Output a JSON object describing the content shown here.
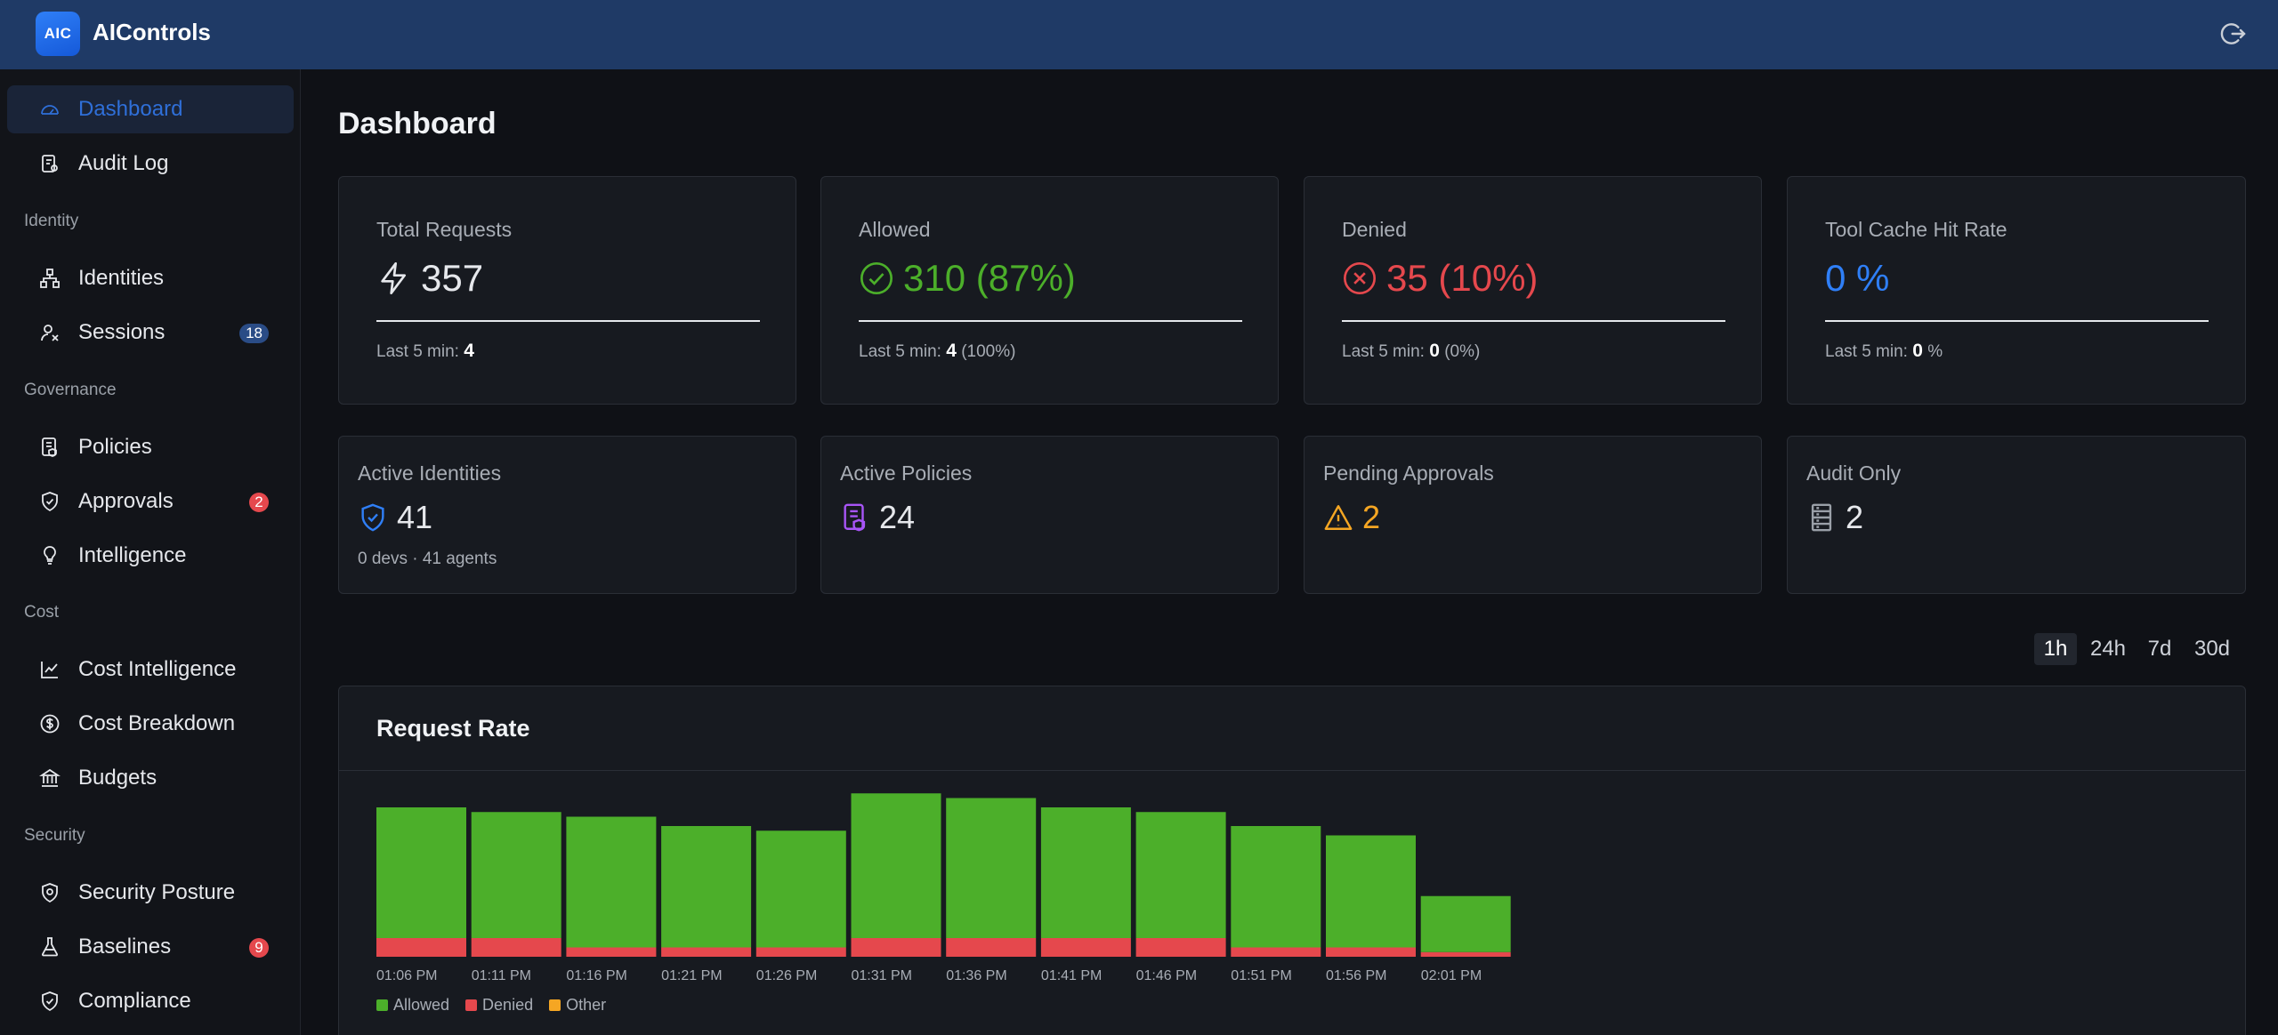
{
  "app": {
    "logo_text": "AIC",
    "title": "AIControls"
  },
  "sidebar": {
    "items": [
      {
        "label": "Dashboard",
        "icon": "dashboard-icon",
        "active": true
      },
      {
        "label": "Audit Log",
        "icon": "audit-log-icon"
      },
      {
        "label": "Identities",
        "icon": "identities-icon"
      },
      {
        "label": "Sessions",
        "icon": "sessions-icon",
        "badge": "18"
      },
      {
        "label": "Policies",
        "icon": "policies-icon"
      },
      {
        "label": "Approvals",
        "icon": "approvals-icon",
        "badge": "2"
      },
      {
        "label": "Intelligence",
        "icon": "lightbulb-icon"
      },
      {
        "label": "Cost Intelligence",
        "icon": "line-chart-icon"
      },
      {
        "label": "Cost Breakdown",
        "icon": "dollar-icon"
      },
      {
        "label": "Budgets",
        "icon": "bank-icon"
      },
      {
        "label": "Security Posture",
        "icon": "shield-icon"
      },
      {
        "label": "Baselines",
        "icon": "flask-icon",
        "badge": "9"
      },
      {
        "label": "Compliance",
        "icon": "shield-check-icon"
      }
    ],
    "sections": [
      "Identity",
      "Governance",
      "Cost",
      "Security"
    ]
  },
  "page": {
    "title": "Dashboard"
  },
  "stats": [
    {
      "title": "Total Requests",
      "value": "357",
      "sub_label": "Last 5 min:",
      "sub_value": "4",
      "sub_extra": "",
      "color": "#e6e8ec"
    },
    {
      "title": "Allowed",
      "value": "310 (87%)",
      "sub_label": "Last 5 min:",
      "sub_value": "4",
      "sub_extra": "(100%)",
      "color": "#4caf2a"
    },
    {
      "title": "Denied",
      "value": "35 (10%)",
      "sub_label": "Last 5 min:",
      "sub_value": "0",
      "sub_extra": "(0%)",
      "color": "#e5484d"
    },
    {
      "title": "Tool Cache Hit Rate",
      "value": "0 %",
      "sub_label": "Last 5 min:",
      "sub_value": "0",
      "sub_extra": "%",
      "color": "#2f7ff7"
    }
  ],
  "stats2": [
    {
      "title": "Active Identities",
      "value": "41",
      "sub": "0 devs · 41 agents",
      "color": "#e6e8ec"
    },
    {
      "title": "Active Policies",
      "value": "24",
      "sub": "",
      "color": "#e6e8ec"
    },
    {
      "title": "Pending Approvals",
      "value": "2",
      "sub": "",
      "color": "#f5a623"
    },
    {
      "title": "Audit Only",
      "value": "2",
      "sub": "",
      "color": "#e6e8ec"
    }
  ],
  "ranges": [
    "1h",
    "24h",
    "7d",
    "30d"
  ],
  "colors": {
    "allowed": "#4caf2a",
    "denied": "#e5484d",
    "other": "#f5a623",
    "accent": "#2f6fd8"
  },
  "chart_data": {
    "type": "bar",
    "title": "Request Rate",
    "stacked": true,
    "categories": [
      "01:06 PM",
      "01:11 PM",
      "01:16 PM",
      "01:21 PM",
      "01:26 PM",
      "01:31 PM",
      "01:36 PM",
      "01:41 PM",
      "01:46 PM",
      "01:51 PM",
      "01:56 PM",
      "02:01 PM"
    ],
    "series": [
      {
        "name": "Allowed",
        "values": [
          28,
          27,
          28,
          26,
          25,
          31,
          30,
          28,
          27,
          26,
          24,
          12
        ]
      },
      {
        "name": "Denied",
        "values": [
          4,
          4,
          2,
          2,
          2,
          4,
          4,
          4,
          4,
          2,
          2,
          1
        ]
      },
      {
        "name": "Other",
        "values": [
          0,
          0,
          0,
          0,
          0,
          0,
          0,
          0,
          0,
          0,
          0,
          0
        ]
      }
    ],
    "legend": "bottom-left"
  }
}
